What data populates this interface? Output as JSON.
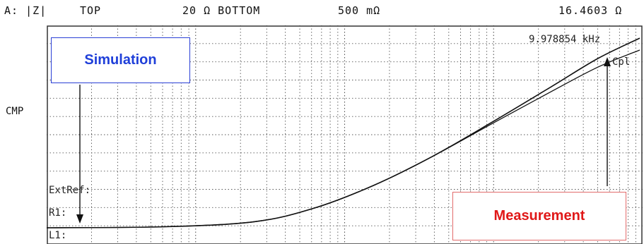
{
  "header": {
    "trace": "A: |Z|",
    "top_label": "TOP",
    "top_value": "20 Ω BOTTOM",
    "bottom_value": "500 mΩ",
    "marker_value": "16.4603 Ω"
  },
  "left_label": "CMP",
  "marker_freq": "9.978854 kHz",
  "marker_label": "Cpl",
  "ref_labels": {
    "extref": "ExtRef:",
    "r1": "R1:",
    "l1": "L1:"
  },
  "annotations": {
    "simulation": {
      "text": "Simulation",
      "border_color": "#2a3fd6",
      "text_color": "#1f3fd9"
    },
    "measurement": {
      "text": "Measurement",
      "border_color": "#e26b6b",
      "text_color": "#e01818"
    }
  },
  "colors": {
    "trace": "#111111",
    "grid": "#555555",
    "frame": "#333333"
  },
  "chart_data": {
    "type": "line",
    "title": "",
    "xscale": "log",
    "yscale": "log",
    "ylim": [
      0.5,
      20
    ],
    "series": [
      {
        "name": "Simulation",
        "points": [
          [
            0,
            0.5
          ],
          [
            0.2,
            0.51
          ],
          [
            0.35,
            0.56
          ],
          [
            0.45,
            0.72
          ],
          [
            0.55,
            1.1
          ],
          [
            0.65,
            1.9
          ],
          [
            0.75,
            3.6
          ],
          [
            0.85,
            7.0
          ],
          [
            0.93,
            12.0
          ],
          [
            1.0,
            17.5
          ]
        ]
      },
      {
        "name": "Measurement",
        "points": [
          [
            0,
            0.5
          ],
          [
            0.2,
            0.51
          ],
          [
            0.35,
            0.56
          ],
          [
            0.45,
            0.72
          ],
          [
            0.55,
            1.1
          ],
          [
            0.65,
            1.9
          ],
          [
            0.75,
            3.5
          ],
          [
            0.85,
            6.4
          ],
          [
            0.93,
            10.2
          ],
          [
            1.0,
            14.0
          ]
        ]
      }
    ]
  }
}
